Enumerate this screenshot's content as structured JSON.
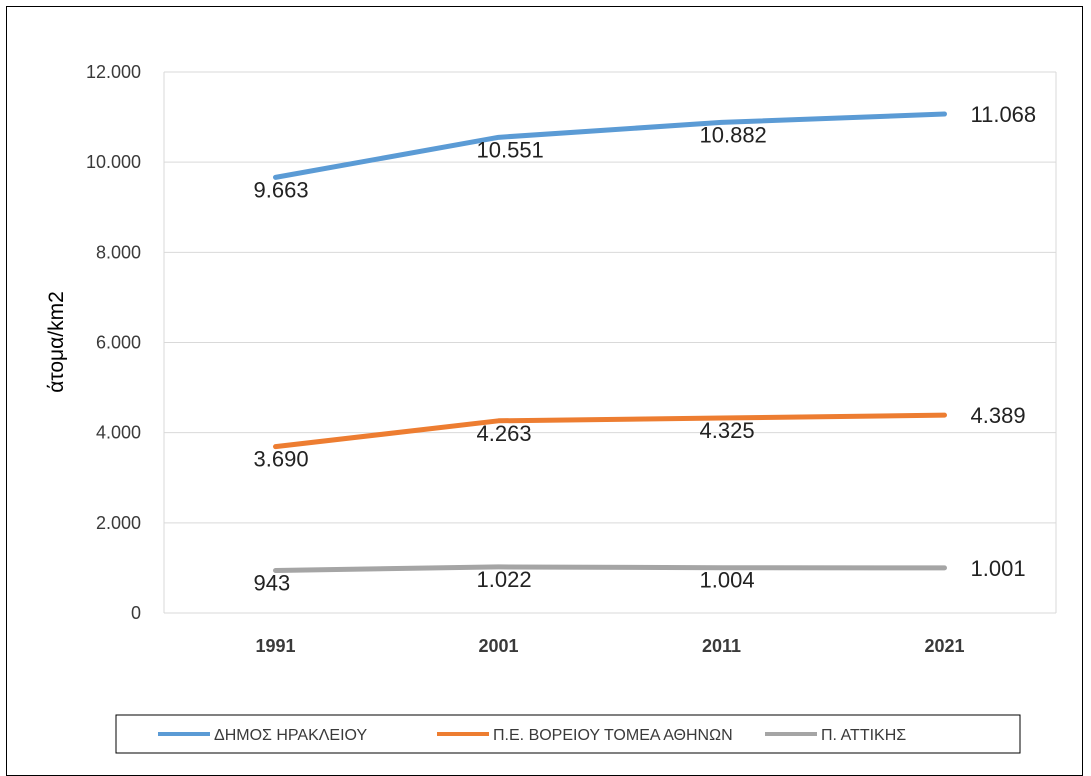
{
  "chart_data": {
    "type": "line",
    "categories": [
      "1991",
      "2001",
      "2011",
      "2021"
    ],
    "ylabel": "άτομα/km2",
    "ylim": [
      0,
      12000
    ],
    "yticks": [
      0,
      2000,
      4000,
      6000,
      8000,
      10000,
      12000
    ],
    "ytick_labels": [
      "0",
      "2.000",
      "4.000",
      "6.000",
      "8.000",
      "10.000",
      "12.000"
    ],
    "grid": true,
    "legend_position": "bottom",
    "series": [
      {
        "name": "ΔΗΜΟΣ ΗΡΑΚΛΕΙΟΥ",
        "color": "#5B9BD5",
        "values": [
          9663,
          10551,
          10882,
          11068
        ],
        "labels": [
          "9.663",
          "10.551",
          "10.882",
          "11.068"
        ]
      },
      {
        "name": "Π.Ε. ΒΟΡΕΙΟΥ ΤΟΜΕΑ ΑΘΗΝΩΝ",
        "color": "#ED7D31",
        "values": [
          3690,
          4263,
          4325,
          4389
        ],
        "labels": [
          "3.690",
          "4.263",
          "4.325",
          "4.389"
        ]
      },
      {
        "name": "Π. ΑΤΤΙΚΗΣ",
        "color": "#A5A5A5",
        "values": [
          943,
          1022,
          1004,
          1001
        ],
        "labels": [
          "943",
          "1.022",
          "1.004",
          "1.001"
        ]
      }
    ]
  }
}
